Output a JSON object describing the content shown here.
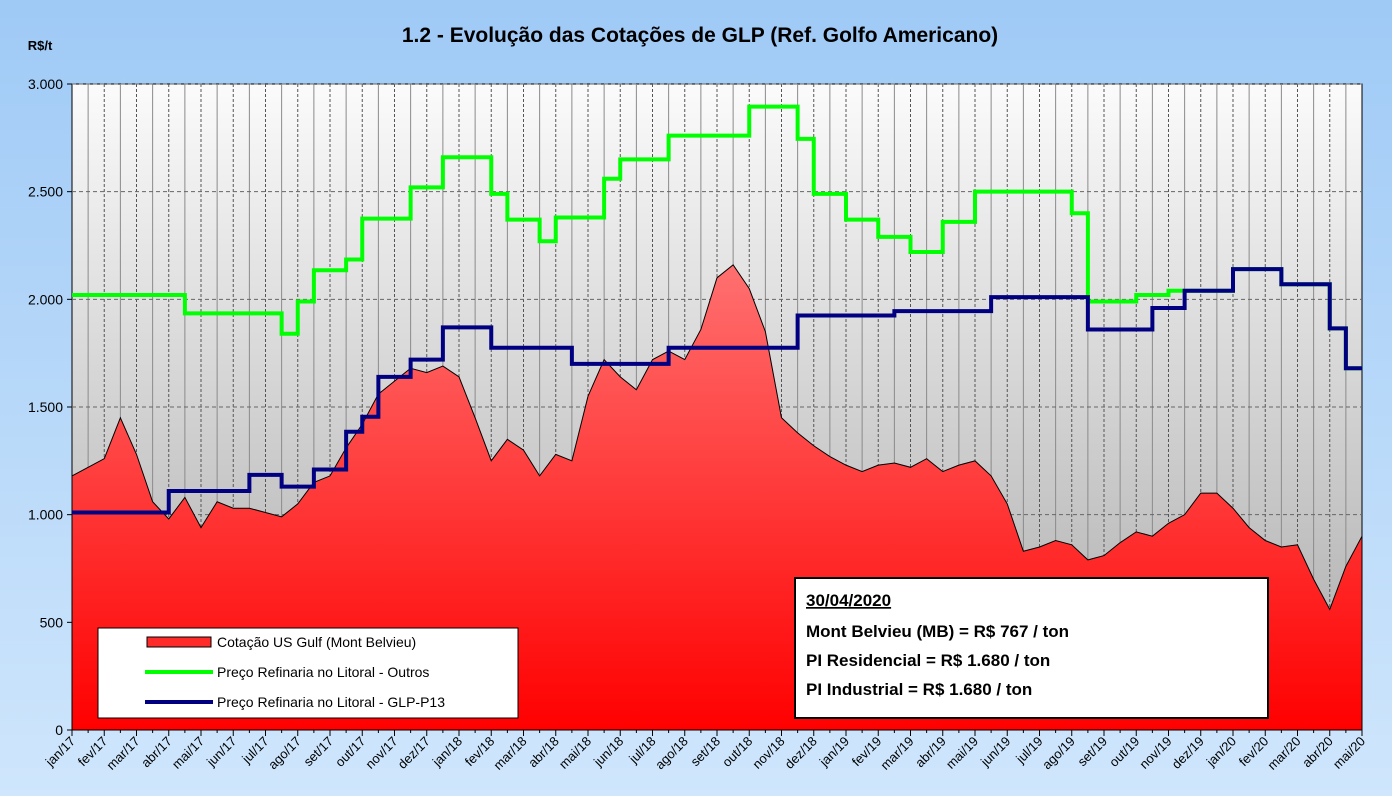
{
  "chart_data": {
    "type": "line",
    "title": "1.2 - Evolução das Cotações de GLP (Ref. Golfo Americano)",
    "y_label": "R$/t",
    "categories": [
      "jan/17",
      null,
      "fev/17",
      null,
      "mar/17",
      null,
      "abr/17",
      null,
      "mai/17",
      null,
      "jun/17",
      null,
      "jul/17",
      null,
      "ago/17",
      null,
      "set/17",
      null,
      "out/17",
      null,
      "nov/17",
      null,
      "dez/17",
      null,
      "jan/18",
      null,
      "fev/18",
      null,
      "mar/18",
      null,
      "abr/18",
      null,
      "mai/18",
      null,
      "jun/18",
      null,
      "jul/18",
      null,
      "ago/18",
      null,
      "set/18",
      null,
      "out/18",
      null,
      "nov/18",
      null,
      "dez/18",
      null,
      "jan/19",
      null,
      "fev/19",
      null,
      "mar/19",
      null,
      "abr/19",
      null,
      "mai/19",
      null,
      "jun/19",
      null,
      "jul/19",
      null,
      "ago/19",
      null,
      "set/19",
      null,
      "out/19",
      null,
      "nov/19",
      null,
      "dez/19",
      null,
      "jan/20",
      null,
      "fev/20",
      null,
      "mar/20",
      null,
      "abr/20",
      null,
      "mai/20"
    ],
    "series": [
      {
        "name": "Cotação US Gulf (Mont Belvieu)",
        "type": "area",
        "color": "#ff2a2a",
        "values": [
          1180,
          1220,
          1260,
          1450,
          1280,
          1060,
          980,
          1080,
          940,
          1060,
          1030,
          1030,
          1010,
          990,
          1050,
          1150,
          1180,
          1310,
          1420,
          1560,
          1620,
          1680,
          1660,
          1690,
          1640,
          1450,
          1250,
          1350,
          1300,
          1180,
          1280,
          1250,
          1550,
          1720,
          1640,
          1580,
          1720,
          1760,
          1720,
          1860,
          2100,
          2160,
          2050,
          1850,
          1450,
          1380,
          1320,
          1270,
          1230,
          1200,
          1230,
          1240,
          1220,
          1260,
          1200,
          1230,
          1250,
          1180,
          1050,
          830,
          850,
          880,
          860,
          790,
          810,
          870,
          920,
          900,
          960,
          1000,
          1100,
          1100,
          1030,
          940,
          880,
          850,
          860,
          700,
          560,
          760,
          900
        ]
      },
      {
        "name": "Preço Refinaria no Litoral - Outros",
        "type": "step",
        "color": "#00ff00",
        "values": [
          2020,
          2020,
          2020,
          2020,
          2020,
          2020,
          2020,
          1935,
          1935,
          1935,
          1935,
          1935,
          1935,
          1840,
          1990,
          2135,
          2135,
          2185,
          2375,
          2375,
          2375,
          2520,
          2520,
          2660,
          2660,
          2660,
          2490,
          2370,
          2370,
          2270,
          2380,
          2380,
          2380,
          2560,
          2650,
          2650,
          2650,
          2760,
          2760,
          2760,
          2760,
          2760,
          2895,
          2895,
          2895,
          2745,
          2490,
          2490,
          2370,
          2370,
          2290,
          2290,
          2220,
          2220,
          2360,
          2360,
          2500,
          2500,
          2500,
          2500,
          2500,
          2500,
          2400,
          1990,
          1990,
          1990,
          2020,
          2020,
          2040,
          2040,
          2040,
          2040,
          2140,
          2140,
          2140,
          2070,
          2070,
          2070,
          1865,
          1680,
          1680
        ]
      },
      {
        "name": "Preço Refinaria no Litoral - GLP-P13",
        "type": "step",
        "color": "#000080",
        "values": [
          1010,
          1010,
          1010,
          1010,
          1010,
          1010,
          1110,
          1110,
          1110,
          1110,
          1110,
          1185,
          1185,
          1130,
          1130,
          1210,
          1210,
          1385,
          1455,
          1640,
          1640,
          1720,
          1720,
          1870,
          1870,
          1870,
          1775,
          1775,
          1775,
          1775,
          1775,
          1700,
          1700,
          1700,
          1700,
          1700,
          1700,
          1775,
          1775,
          1775,
          1775,
          1775,
          1775,
          1775,
          1775,
          1925,
          1925,
          1925,
          1925,
          1925,
          1925,
          1945,
          1945,
          1945,
          1945,
          1945,
          1945,
          2010,
          2010,
          2010,
          2010,
          2010,
          2010,
          1860,
          1860,
          1860,
          1860,
          1960,
          1960,
          2040,
          2040,
          2040,
          2140,
          2140,
          2140,
          2070,
          2070,
          2070,
          1865,
          1680,
          1680
        ]
      }
    ],
    "ylim": [
      0,
      3000
    ],
    "yticks": [
      0,
      500,
      {
        "value": 1000,
        "label": "1.000"
      },
      {
        "value": 1500,
        "label": "1.500"
      },
      {
        "value": 2000,
        "label": "2.000"
      },
      {
        "value": 2500,
        "label": "2.500"
      },
      {
        "value": 3000,
        "label": "3.000"
      }
    ],
    "grid": true,
    "legend": "lower left",
    "annotations": [
      "30/04/2020",
      "Mont Belvieu (MB) = R$ 767 / ton",
      "PI Residencial = R$ 1.680 / ton",
      "PI Industrial = R$ 1.680 / ton"
    ]
  }
}
